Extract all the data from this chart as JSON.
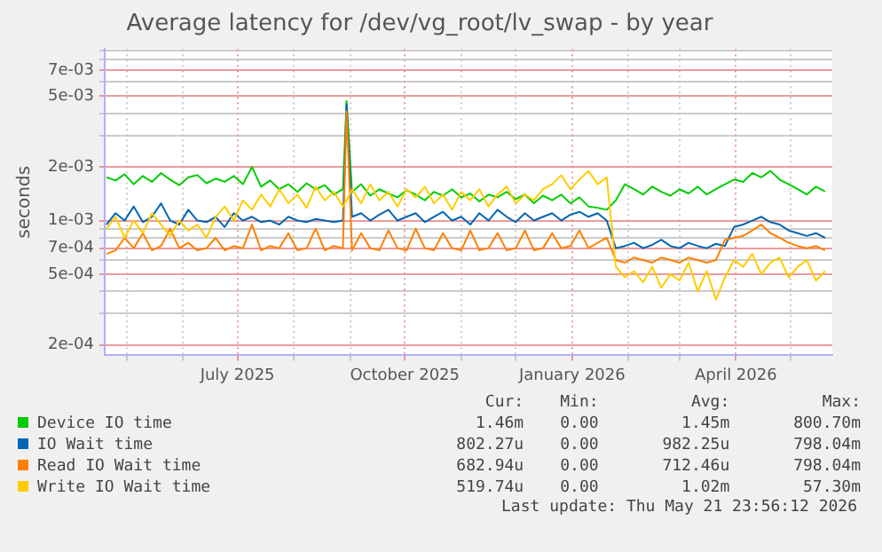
{
  "chart_data": {
    "type": "line",
    "title": "Average latency for /dev/vg_root/lv_swap - by year",
    "ylabel": "seconds",
    "log": "y",
    "grid": true,
    "legend": "bottom",
    "marker": "none",
    "line_style": "solid",
    "xlim": [
      "2025-04-19",
      "2026-05-24"
    ],
    "xticks": [
      {
        "value": "2025-05-01",
        "label": null
      },
      {
        "value": "2025-06-01",
        "label": null
      },
      {
        "value": "2025-07-01",
        "label": "July 2025"
      },
      {
        "value": "2025-08-01",
        "label": null
      },
      {
        "value": "2025-09-01",
        "label": null
      },
      {
        "value": "2025-10-01",
        "label": "October 2025"
      },
      {
        "value": "2025-11-01",
        "label": null
      },
      {
        "value": "2025-12-01",
        "label": null
      },
      {
        "value": "2026-01-01",
        "label": "January 2026"
      },
      {
        "value": "2026-02-01",
        "label": null
      },
      {
        "value": "2026-03-01",
        "label": null
      },
      {
        "value": "2026-04-01",
        "label": "April 2026"
      },
      {
        "value": "2026-05-01",
        "label": null
      }
    ],
    "ylim": [
      0.000175,
      0.0092
    ],
    "yticks": [
      {
        "value": 0.0002,
        "label": "2e-04"
      },
      {
        "value": 0.0003,
        "label": null
      },
      {
        "value": 0.0004,
        "label": null
      },
      {
        "value": 0.0005,
        "label": "5e-04"
      },
      {
        "value": 0.0006,
        "label": null
      },
      {
        "value": 0.0007,
        "label": "7e-04"
      },
      {
        "value": 0.0008,
        "label": null
      },
      {
        "value": 0.0009,
        "label": null
      },
      {
        "value": 0.001,
        "label": "1e-03"
      },
      {
        "value": 0.002,
        "label": "2e-03"
      },
      {
        "value": 0.003,
        "label": null
      },
      {
        "value": 0.004,
        "label": null
      },
      {
        "value": 0.005,
        "label": "5e-03"
      },
      {
        "value": 0.006,
        "label": null
      },
      {
        "value": 0.007,
        "label": "7e-03"
      },
      {
        "value": 0.008,
        "label": null
      },
      {
        "value": 0.009,
        "label": null
      }
    ],
    "x": [
      "2025-04-20",
      "2025-04-25",
      "2025-04-30",
      "2025-05-05",
      "2025-05-10",
      "2025-05-15",
      "2025-05-20",
      "2025-05-25",
      "2025-05-30",
      "2025-06-04",
      "2025-06-09",
      "2025-06-14",
      "2025-06-19",
      "2025-06-24",
      "2025-06-29",
      "2025-07-04",
      "2025-07-09",
      "2025-07-14",
      "2025-07-19",
      "2025-07-24",
      "2025-07-29",
      "2025-08-03",
      "2025-08-08",
      "2025-08-13",
      "2025-08-18",
      "2025-08-23",
      "2025-08-28",
      "2025-08-30",
      "2025-09-02",
      "2025-09-07",
      "2025-09-12",
      "2025-09-17",
      "2025-09-22",
      "2025-09-27",
      "2025-10-02",
      "2025-10-07",
      "2025-10-12",
      "2025-10-17",
      "2025-10-22",
      "2025-10-27",
      "2025-11-01",
      "2025-11-06",
      "2025-11-11",
      "2025-11-16",
      "2025-11-21",
      "2025-11-26",
      "2025-12-01",
      "2025-12-06",
      "2025-12-11",
      "2025-12-16",
      "2025-12-21",
      "2025-12-26",
      "2025-12-31",
      "2026-01-05",
      "2026-01-10",
      "2026-01-15",
      "2026-01-20",
      "2026-01-25",
      "2026-01-30",
      "2026-02-04",
      "2026-02-09",
      "2026-02-14",
      "2026-02-19",
      "2026-02-24",
      "2026-03-01",
      "2026-03-06",
      "2026-03-11",
      "2026-03-16",
      "2026-03-21",
      "2026-03-26",
      "2026-03-31",
      "2026-04-05",
      "2026-04-10",
      "2026-04-15",
      "2026-04-20",
      "2026-04-25",
      "2026-04-30",
      "2026-05-05",
      "2026-05-10",
      "2026-05-15",
      "2026-05-20"
    ],
    "series": [
      {
        "name": "Device IO time",
        "color": "#00cc00",
        "values": [
          0.00175,
          0.00168,
          0.00182,
          0.0016,
          0.00178,
          0.00165,
          0.00185,
          0.0017,
          0.00158,
          0.00175,
          0.0018,
          0.00162,
          0.00172,
          0.00165,
          0.00178,
          0.0016,
          0.002,
          0.00155,
          0.00168,
          0.0015,
          0.0016,
          0.00145,
          0.00162,
          0.0015,
          0.00158,
          0.0014,
          0.0015,
          0.0047,
          0.00145,
          0.0016,
          0.00138,
          0.0015,
          0.00142,
          0.00135,
          0.00148,
          0.0014,
          0.0013,
          0.00145,
          0.00138,
          0.0015,
          0.00135,
          0.00142,
          0.00128,
          0.0014,
          0.00135,
          0.00145,
          0.00132,
          0.0014,
          0.00125,
          0.00138,
          0.0013,
          0.0014,
          0.00125,
          0.00135,
          0.0012,
          0.00118,
          0.00115,
          0.0013,
          0.0016,
          0.0015,
          0.0014,
          0.00155,
          0.00145,
          0.00138,
          0.0015,
          0.00142,
          0.00155,
          0.0014,
          0.0015,
          0.0016,
          0.0017,
          0.00165,
          0.00185,
          0.00175,
          0.0019,
          0.0017,
          0.0016,
          0.0015,
          0.0014,
          0.00155,
          0.00146
        ]
      },
      {
        "name": "IO Wait time",
        "color": "#0066b3",
        "values": [
          0.00095,
          0.0011,
          0.001,
          0.0012,
          0.00098,
          0.00105,
          0.00125,
          0.001,
          0.00095,
          0.00115,
          0.001,
          0.00098,
          0.00105,
          0.00092,
          0.0011,
          0.001,
          0.00105,
          0.00098,
          0.001,
          0.00095,
          0.00105,
          0.001,
          0.00098,
          0.00102,
          0.001,
          0.00098,
          0.001,
          0.0045,
          0.00105,
          0.0011,
          0.001,
          0.00108,
          0.00115,
          0.001,
          0.00105,
          0.0011,
          0.00098,
          0.00105,
          0.00112,
          0.001,
          0.00105,
          0.00095,
          0.0011,
          0.001,
          0.00115,
          0.00105,
          0.00098,
          0.0011,
          0.001,
          0.00105,
          0.0011,
          0.001,
          0.00108,
          0.00112,
          0.00105,
          0.0011,
          0.001,
          0.0007,
          0.00072,
          0.00075,
          0.0007,
          0.00073,
          0.00078,
          0.00072,
          0.0007,
          0.00075,
          0.00072,
          0.0007,
          0.00074,
          0.00072,
          0.00092,
          0.00095,
          0.001,
          0.00105,
          0.00098,
          0.00095,
          0.00088,
          0.00085,
          0.00082,
          0.00085,
          0.0008
        ]
      },
      {
        "name": "Read IO Wait time",
        "color": "#ff8000",
        "values": [
          0.00065,
          0.00068,
          0.0008,
          0.0007,
          0.00085,
          0.00068,
          0.00072,
          0.0009,
          0.0007,
          0.00075,
          0.00068,
          0.0007,
          0.0008,
          0.00068,
          0.00072,
          0.0007,
          0.00095,
          0.00068,
          0.00072,
          0.0007,
          0.00085,
          0.00068,
          0.0007,
          0.0009,
          0.00068,
          0.00072,
          0.0007,
          0.0041,
          0.00068,
          0.00085,
          0.0007,
          0.00068,
          0.00088,
          0.0007,
          0.00068,
          0.0009,
          0.0007,
          0.00068,
          0.00085,
          0.0007,
          0.00068,
          0.00088,
          0.00068,
          0.0007,
          0.00085,
          0.00068,
          0.0007,
          0.00088,
          0.00068,
          0.0007,
          0.00085,
          0.0007,
          0.00072,
          0.00088,
          0.0007,
          0.00075,
          0.0008,
          0.0006,
          0.00058,
          0.00062,
          0.0006,
          0.00058,
          0.00062,
          0.0006,
          0.00058,
          0.00062,
          0.0006,
          0.00058,
          0.0006,
          0.00078,
          0.0008,
          0.00082,
          0.00088,
          0.00095,
          0.00085,
          0.0008,
          0.00075,
          0.00072,
          0.0007,
          0.00072,
          0.00068
        ]
      },
      {
        "name": "Write IO Wait time",
        "color": "#ffcc00",
        "values": [
          0.0009,
          0.00105,
          0.0008,
          0.001,
          0.00085,
          0.0011,
          0.00095,
          0.00082,
          0.001,
          0.00088,
          0.00095,
          0.0008,
          0.00105,
          0.0012,
          0.001,
          0.0013,
          0.00115,
          0.0014,
          0.0012,
          0.0015,
          0.00125,
          0.0014,
          0.00118,
          0.00155,
          0.0013,
          0.00145,
          0.0012,
          0.0013,
          0.0015,
          0.00125,
          0.0016,
          0.0013,
          0.00145,
          0.0012,
          0.0015,
          0.00135,
          0.00155,
          0.00125,
          0.0014,
          0.00115,
          0.00145,
          0.0013,
          0.0015,
          0.0012,
          0.0014,
          0.00155,
          0.00125,
          0.0014,
          0.0013,
          0.0015,
          0.0016,
          0.0018,
          0.0015,
          0.0017,
          0.0019,
          0.0016,
          0.00175,
          0.00055,
          0.00048,
          0.00052,
          0.00045,
          0.00055,
          0.00042,
          0.0005,
          0.00046,
          0.00058,
          0.0004,
          0.00052,
          0.00036,
          0.00048,
          0.0006,
          0.00055,
          0.00065,
          0.0005,
          0.00058,
          0.00062,
          0.00048,
          0.00055,
          0.0006,
          0.00046,
          0.00052
        ]
      }
    ],
    "annotations": [
      "Cur:",
      "Min:",
      "Avg:",
      "Max:",
      "1.46m",
      "0.00",
      "1.45m",
      "800.70m",
      "802.27u",
      "0.00",
      "982.25u",
      "798.04m",
      "682.94u",
      "0.00",
      "712.46u",
      "798.04m",
      "519.74u",
      "0.00",
      "1.02m",
      "57.30m",
      "Last update: Thu May 21 23:56:12 2026"
    ]
  }
}
